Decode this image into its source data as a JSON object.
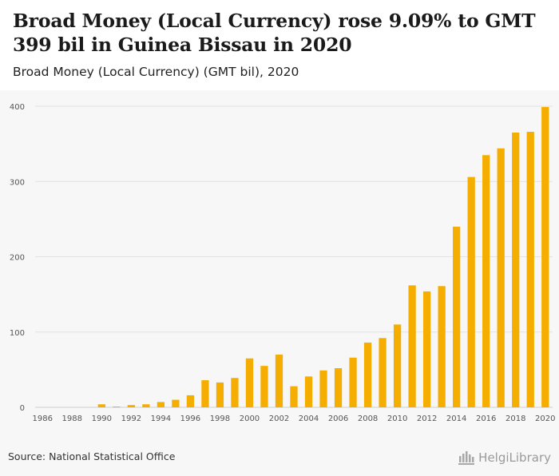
{
  "header": {
    "title": "Broad Money (Local Currency) rose 9.09% to GMT 399 bil in Guinea Bissau in 2020",
    "subtitle": "Broad Money (Local Currency) (GMT bil), 2020"
  },
  "footer": {
    "source": "Source: National Statistical Office",
    "brand": "HelgiLibrary"
  },
  "colors": {
    "bar": "#f5ad00",
    "grid": "#e2e2e2",
    "axis_text": "#555555",
    "background": "#f7f7f7"
  },
  "chart_data": {
    "type": "bar",
    "title": "Broad Money (Local Currency) rose 9.09% to GMT 399 bil in Guinea Bissau in 2020",
    "subtitle": "Broad Money (Local Currency) (GMT bil), 2020",
    "xlabel": "",
    "ylabel": "",
    "ylim": [
      0,
      400
    ],
    "yticks": [
      0,
      100,
      200,
      300,
      400
    ],
    "grid": true,
    "legend": "none",
    "categories": [
      "1986",
      "1987",
      "1988",
      "1989",
      "1990",
      "1991",
      "1992",
      "1993",
      "1994",
      "1995",
      "1996",
      "1997",
      "1998",
      "1999",
      "2000",
      "2001",
      "2002",
      "2003",
      "2004",
      "2005",
      "2006",
      "2007",
      "2008",
      "2009",
      "2010",
      "2011",
      "2012",
      "2013",
      "2014",
      "2015",
      "2016",
      "2017",
      "2018",
      "2019",
      "2020"
    ],
    "xtick_labels": [
      "1986",
      "1988",
      "1990",
      "1992",
      "1994",
      "1996",
      "1998",
      "2000",
      "2002",
      "2004",
      "2006",
      "2008",
      "2010",
      "2012",
      "2014",
      "2016",
      "2018",
      "2020"
    ],
    "values": [
      0,
      0,
      0,
      0,
      4,
      1,
      3,
      4,
      7,
      10,
      16,
      36,
      33,
      39,
      65,
      55,
      70,
      28,
      41,
      49,
      52,
      66,
      86,
      92,
      110,
      162,
      154,
      161,
      240,
      306,
      335,
      344,
      365,
      366,
      399
    ]
  }
}
